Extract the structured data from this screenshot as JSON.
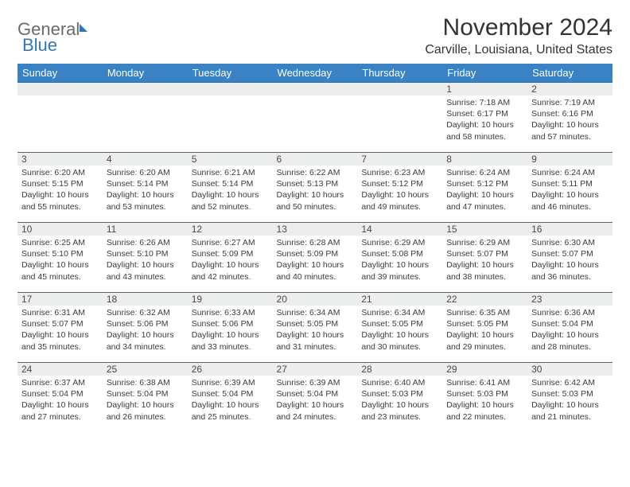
{
  "logo": {
    "part1": "General",
    "part2": "Blue"
  },
  "header": {
    "title": "November 2024",
    "subtitle": "Carville, Louisiana, United States"
  },
  "colors": {
    "header_bg": "#3a82c4",
    "header_text": "#ffffff",
    "daynum_bg": "#eceded",
    "row_border": "#2f6aa3",
    "body_text": "#3b3b3b",
    "title_text": "#333333",
    "logo_gray": "#6b6b6b",
    "logo_blue": "#2f76bb"
  },
  "weekdays": [
    "Sunday",
    "Monday",
    "Tuesday",
    "Wednesday",
    "Thursday",
    "Friday",
    "Saturday"
  ],
  "weeks": [
    [
      {
        "n": "",
        "sr": "",
        "ss": "",
        "dl": ""
      },
      {
        "n": "",
        "sr": "",
        "ss": "",
        "dl": ""
      },
      {
        "n": "",
        "sr": "",
        "ss": "",
        "dl": ""
      },
      {
        "n": "",
        "sr": "",
        "ss": "",
        "dl": ""
      },
      {
        "n": "",
        "sr": "",
        "ss": "",
        "dl": ""
      },
      {
        "n": "1",
        "sr": "Sunrise: 7:18 AM",
        "ss": "Sunset: 6:17 PM",
        "dl": "Daylight: 10 hours and 58 minutes."
      },
      {
        "n": "2",
        "sr": "Sunrise: 7:19 AM",
        "ss": "Sunset: 6:16 PM",
        "dl": "Daylight: 10 hours and 57 minutes."
      }
    ],
    [
      {
        "n": "3",
        "sr": "Sunrise: 6:20 AM",
        "ss": "Sunset: 5:15 PM",
        "dl": "Daylight: 10 hours and 55 minutes."
      },
      {
        "n": "4",
        "sr": "Sunrise: 6:20 AM",
        "ss": "Sunset: 5:14 PM",
        "dl": "Daylight: 10 hours and 53 minutes."
      },
      {
        "n": "5",
        "sr": "Sunrise: 6:21 AM",
        "ss": "Sunset: 5:14 PM",
        "dl": "Daylight: 10 hours and 52 minutes."
      },
      {
        "n": "6",
        "sr": "Sunrise: 6:22 AM",
        "ss": "Sunset: 5:13 PM",
        "dl": "Daylight: 10 hours and 50 minutes."
      },
      {
        "n": "7",
        "sr": "Sunrise: 6:23 AM",
        "ss": "Sunset: 5:12 PM",
        "dl": "Daylight: 10 hours and 49 minutes."
      },
      {
        "n": "8",
        "sr": "Sunrise: 6:24 AM",
        "ss": "Sunset: 5:12 PM",
        "dl": "Daylight: 10 hours and 47 minutes."
      },
      {
        "n": "9",
        "sr": "Sunrise: 6:24 AM",
        "ss": "Sunset: 5:11 PM",
        "dl": "Daylight: 10 hours and 46 minutes."
      }
    ],
    [
      {
        "n": "10",
        "sr": "Sunrise: 6:25 AM",
        "ss": "Sunset: 5:10 PM",
        "dl": "Daylight: 10 hours and 45 minutes."
      },
      {
        "n": "11",
        "sr": "Sunrise: 6:26 AM",
        "ss": "Sunset: 5:10 PM",
        "dl": "Daylight: 10 hours and 43 minutes."
      },
      {
        "n": "12",
        "sr": "Sunrise: 6:27 AM",
        "ss": "Sunset: 5:09 PM",
        "dl": "Daylight: 10 hours and 42 minutes."
      },
      {
        "n": "13",
        "sr": "Sunrise: 6:28 AM",
        "ss": "Sunset: 5:09 PM",
        "dl": "Daylight: 10 hours and 40 minutes."
      },
      {
        "n": "14",
        "sr": "Sunrise: 6:29 AM",
        "ss": "Sunset: 5:08 PM",
        "dl": "Daylight: 10 hours and 39 minutes."
      },
      {
        "n": "15",
        "sr": "Sunrise: 6:29 AM",
        "ss": "Sunset: 5:07 PM",
        "dl": "Daylight: 10 hours and 38 minutes."
      },
      {
        "n": "16",
        "sr": "Sunrise: 6:30 AM",
        "ss": "Sunset: 5:07 PM",
        "dl": "Daylight: 10 hours and 36 minutes."
      }
    ],
    [
      {
        "n": "17",
        "sr": "Sunrise: 6:31 AM",
        "ss": "Sunset: 5:07 PM",
        "dl": "Daylight: 10 hours and 35 minutes."
      },
      {
        "n": "18",
        "sr": "Sunrise: 6:32 AM",
        "ss": "Sunset: 5:06 PM",
        "dl": "Daylight: 10 hours and 34 minutes."
      },
      {
        "n": "19",
        "sr": "Sunrise: 6:33 AM",
        "ss": "Sunset: 5:06 PM",
        "dl": "Daylight: 10 hours and 33 minutes."
      },
      {
        "n": "20",
        "sr": "Sunrise: 6:34 AM",
        "ss": "Sunset: 5:05 PM",
        "dl": "Daylight: 10 hours and 31 minutes."
      },
      {
        "n": "21",
        "sr": "Sunrise: 6:34 AM",
        "ss": "Sunset: 5:05 PM",
        "dl": "Daylight: 10 hours and 30 minutes."
      },
      {
        "n": "22",
        "sr": "Sunrise: 6:35 AM",
        "ss": "Sunset: 5:05 PM",
        "dl": "Daylight: 10 hours and 29 minutes."
      },
      {
        "n": "23",
        "sr": "Sunrise: 6:36 AM",
        "ss": "Sunset: 5:04 PM",
        "dl": "Daylight: 10 hours and 28 minutes."
      }
    ],
    [
      {
        "n": "24",
        "sr": "Sunrise: 6:37 AM",
        "ss": "Sunset: 5:04 PM",
        "dl": "Daylight: 10 hours and 27 minutes."
      },
      {
        "n": "25",
        "sr": "Sunrise: 6:38 AM",
        "ss": "Sunset: 5:04 PM",
        "dl": "Daylight: 10 hours and 26 minutes."
      },
      {
        "n": "26",
        "sr": "Sunrise: 6:39 AM",
        "ss": "Sunset: 5:04 PM",
        "dl": "Daylight: 10 hours and 25 minutes."
      },
      {
        "n": "27",
        "sr": "Sunrise: 6:39 AM",
        "ss": "Sunset: 5:04 PM",
        "dl": "Daylight: 10 hours and 24 minutes."
      },
      {
        "n": "28",
        "sr": "Sunrise: 6:40 AM",
        "ss": "Sunset: 5:03 PM",
        "dl": "Daylight: 10 hours and 23 minutes."
      },
      {
        "n": "29",
        "sr": "Sunrise: 6:41 AM",
        "ss": "Sunset: 5:03 PM",
        "dl": "Daylight: 10 hours and 22 minutes."
      },
      {
        "n": "30",
        "sr": "Sunrise: 6:42 AM",
        "ss": "Sunset: 5:03 PM",
        "dl": "Daylight: 10 hours and 21 minutes."
      }
    ]
  ]
}
